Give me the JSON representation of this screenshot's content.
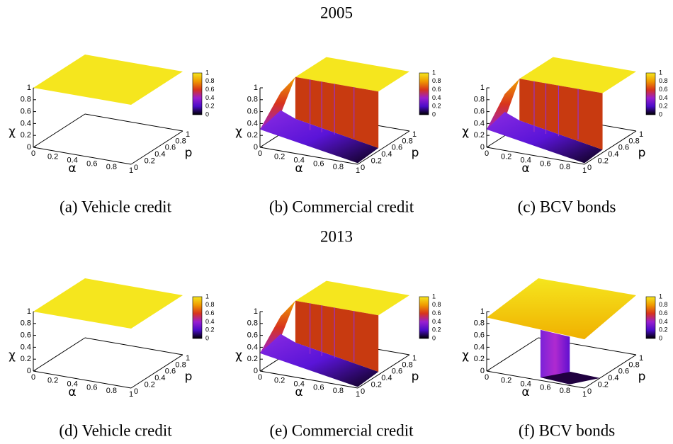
{
  "figure": {
    "rows": [
      {
        "title": "2005",
        "panels": [
          {
            "caption": "(a) Vehicle credit"
          },
          {
            "caption": "(b) Commercial credit"
          },
          {
            "caption": "(c) BCV bonds"
          }
        ]
      },
      {
        "title": "2013",
        "panels": [
          {
            "caption": "(d) Vehicle credit"
          },
          {
            "caption": "(e) Commercial credit"
          },
          {
            "caption": "(f) BCV bonds"
          }
        ]
      }
    ],
    "axis_labels": {
      "z": "χ",
      "x": "α",
      "y": "p"
    },
    "ticks": [
      "0",
      "0.2",
      "0.4",
      "0.6",
      "0.8",
      "1"
    ]
  }
}
